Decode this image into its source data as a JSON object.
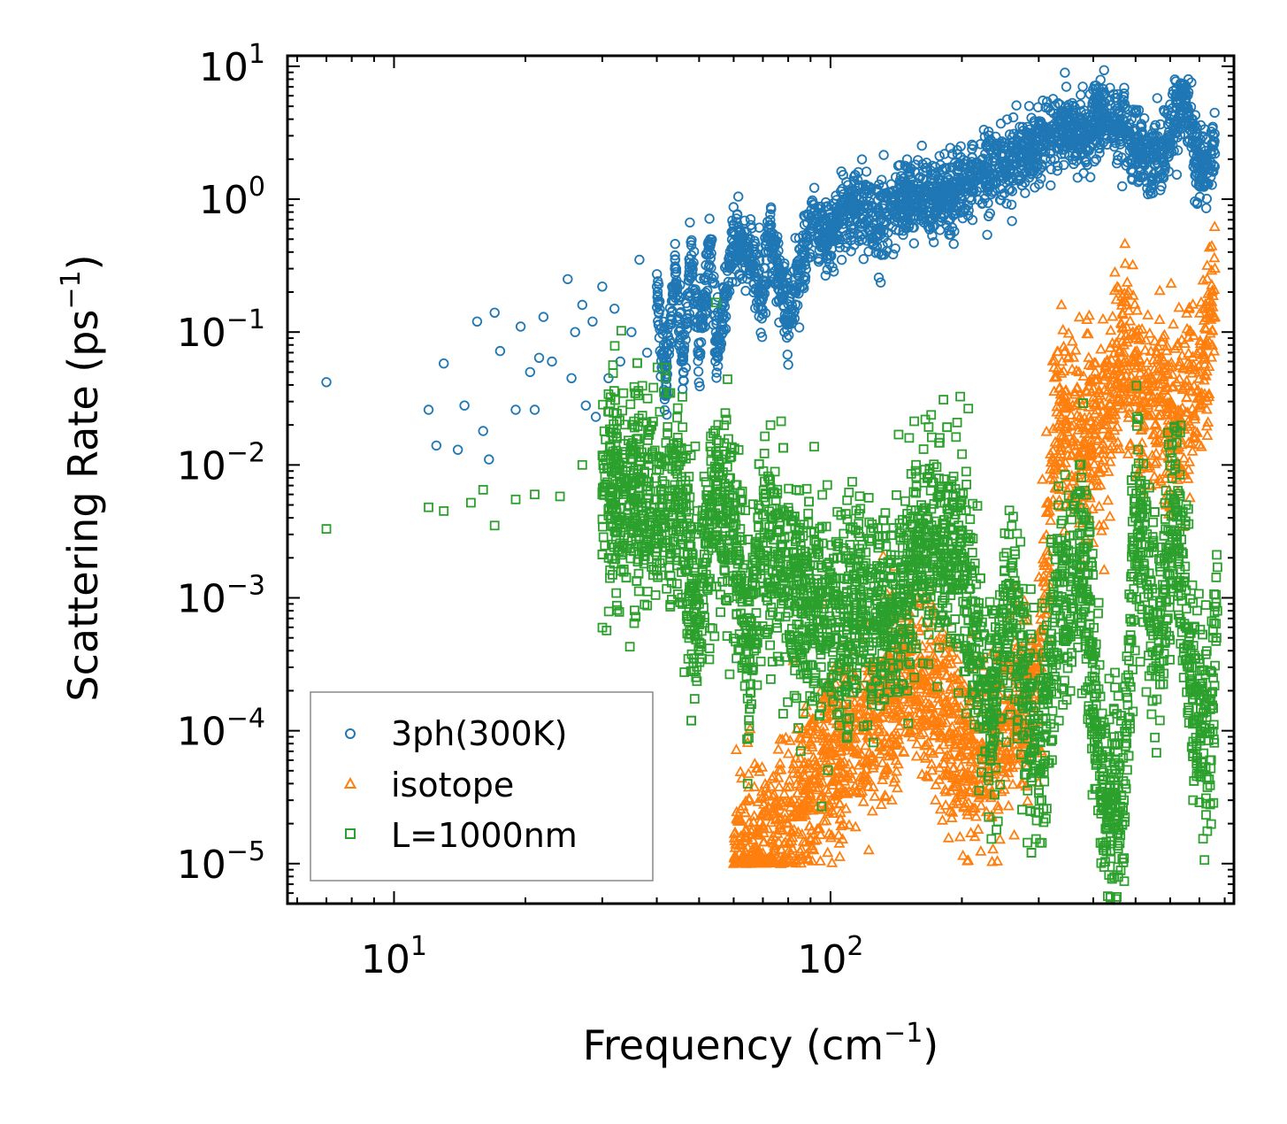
{
  "chart_data": {
    "type": "scatter",
    "xscale": "log",
    "yscale": "log",
    "xlim": [
      5.7,
      840
    ],
    "ylim": [
      5e-06,
      12
    ],
    "xlabel": {
      "base": "Frequency (cm",
      "sup": "−1",
      "tail": ")"
    },
    "ylabel": {
      "base": "Scattering Rate (ps",
      "sup": "−1",
      "tail": ")"
    },
    "x_ticks": [
      {
        "value": 10,
        "base": "10",
        "exp": "1"
      },
      {
        "value": 100,
        "base": "10",
        "exp": "2"
      }
    ],
    "y_ticks": [
      {
        "value": 10,
        "base": "10",
        "exp": "1"
      },
      {
        "value": 1,
        "base": "10",
        "exp": "0"
      },
      {
        "value": 0.1,
        "base": "10",
        "exp": "−1"
      },
      {
        "value": 0.01,
        "base": "10",
        "exp": "−2"
      },
      {
        "value": 0.001,
        "base": "10",
        "exp": "−3"
      },
      {
        "value": 0.0001,
        "base": "10",
        "exp": "−4"
      },
      {
        "value": 1e-05,
        "base": "10",
        "exp": "−5"
      }
    ],
    "legend_position": "lower-left",
    "series": [
      {
        "name": "3ph(300K)",
        "marker": "circle",
        "color": "#1f77b4",
        "sample_points": [
          [
            7.0,
            0.042
          ],
          [
            12.0,
            0.026
          ],
          [
            12.5,
            0.014
          ],
          [
            13.0,
            0.058
          ],
          [
            14.0,
            0.013
          ],
          [
            14.5,
            0.028
          ],
          [
            15.5,
            0.12
          ],
          [
            16.0,
            0.018
          ],
          [
            16.5,
            0.011
          ],
          [
            17.0,
            0.14
          ],
          [
            17.5,
            0.072
          ],
          [
            19.0,
            0.026
          ],
          [
            19.5,
            0.11
          ],
          [
            20.5,
            0.05
          ],
          [
            21.0,
            0.026
          ],
          [
            21.5,
            0.064
          ],
          [
            22.0,
            0.13
          ],
          [
            23.0,
            0.06
          ],
          [
            25.0,
            0.25
          ],
          [
            25.5,
            0.045
          ],
          [
            26.0,
            0.1
          ],
          [
            27.0,
            0.16
          ],
          [
            27.5,
            0.028
          ],
          [
            28.5,
            0.12
          ],
          [
            29.0,
            0.023
          ],
          [
            30.0,
            0.22
          ],
          [
            31.0,
            0.045
          ],
          [
            32.0,
            0.15
          ],
          [
            33.0,
            0.06
          ],
          [
            35.0,
            0.1
          ],
          [
            36.5,
            0.35
          ],
          [
            38.0,
            0.07
          ],
          [
            40.0,
            0.22
          ],
          [
            42.0,
            0.04
          ],
          [
            44.0,
            0.3
          ],
          [
            46.0,
            0.05
          ],
          [
            48.0,
            0.45
          ],
          [
            50.0,
            0.07
          ],
          [
            53.0,
            0.5
          ],
          [
            55.0,
            0.065
          ],
          [
            60.0,
            0.55
          ],
          [
            65.0,
            0.4
          ],
          [
            70.0,
            0.18
          ],
          [
            72.0,
            0.6
          ],
          [
            80.0,
            0.13
          ],
          [
            90.0,
            0.6
          ],
          [
            100.0,
            0.5
          ],
          [
            110.0,
            0.9
          ],
          [
            130.0,
            0.7
          ],
          [
            150.0,
            1.0
          ],
          [
            180.0,
            1.1
          ],
          [
            220.0,
            1.5
          ],
          [
            260.0,
            2.0
          ],
          [
            300.0,
            2.5
          ],
          [
            340.0,
            3.5
          ],
          [
            380.0,
            3.0
          ],
          [
            420.0,
            4.5
          ],
          [
            480.0,
            3.0
          ],
          [
            540.0,
            2.0
          ],
          [
            600.0,
            2.8
          ],
          [
            650.0,
            6.2
          ],
          [
            700.0,
            1.5
          ],
          [
            760.0,
            2.2
          ]
        ]
      },
      {
        "name": "isotope",
        "marker": "triangle",
        "color": "#ff7f0e",
        "sample_points": [
          [
            60.0,
            1e-05
          ],
          [
            70.0,
            1.2e-05
          ],
          [
            80.0,
            2e-05
          ],
          [
            90.0,
            4e-05
          ],
          [
            100.0,
            6e-05
          ],
          [
            120.0,
            0.0001
          ],
          [
            140.0,
            0.00018
          ],
          [
            160.0,
            0.00025
          ],
          [
            180.0,
            0.00012
          ],
          [
            200.0,
            8e-05
          ],
          [
            230.0,
            5e-05
          ],
          [
            260.0,
            0.00012
          ],
          [
            300.0,
            0.0003
          ],
          [
            320.0,
            0.005
          ],
          [
            330.0,
            0.025
          ],
          [
            380.0,
            0.015
          ],
          [
            430.0,
            0.02
          ],
          [
            470.0,
            0.08
          ],
          [
            520.0,
            0.03
          ],
          [
            580.0,
            0.03
          ],
          [
            640.0,
            0.02
          ],
          [
            700.0,
            0.05
          ],
          [
            760.0,
            0.13
          ]
        ]
      },
      {
        "name": "L=1000nm",
        "marker": "square",
        "color": "#2ca02c",
        "sample_points": [
          [
            7.0,
            0.0033
          ],
          [
            12.0,
            0.0048
          ],
          [
            13.0,
            0.0045
          ],
          [
            15.0,
            0.0052
          ],
          [
            16.0,
            0.0065
          ],
          [
            17.0,
            0.0035
          ],
          [
            19.0,
            0.0055
          ],
          [
            21.0,
            0.006
          ],
          [
            24.0,
            0.0058
          ],
          [
            27.0,
            0.01
          ],
          [
            30.0,
            0.006
          ],
          [
            35.0,
            0.007
          ],
          [
            40.0,
            0.0055
          ],
          [
            45.0,
            0.0065
          ],
          [
            48.0,
            0.0012
          ],
          [
            50.0,
            0.0009
          ],
          [
            55.0,
            0.007
          ],
          [
            60.0,
            0.003
          ],
          [
            65.0,
            0.00045
          ],
          [
            70.0,
            0.0026
          ],
          [
            80.0,
            0.0015
          ],
          [
            90.0,
            0.0008
          ],
          [
            100.0,
            0.0005
          ],
          [
            120.0,
            0.0008
          ],
          [
            140.0,
            0.0007
          ],
          [
            160.0,
            0.003
          ],
          [
            200.0,
            0.002
          ],
          [
            230.0,
            0.00011
          ],
          [
            260.0,
            0.001
          ],
          [
            300.0,
            5e-05
          ],
          [
            330.0,
            0.0008
          ],
          [
            380.0,
            0.002
          ],
          [
            420.0,
            3e-05
          ],
          [
            470.0,
            3e-05
          ],
          [
            500.0,
            0.004
          ],
          [
            560.0,
            0.0006
          ],
          [
            620.0,
            0.0045
          ],
          [
            680.0,
            0.00012
          ],
          [
            740.0,
            6e-05
          ],
          [
            770.0,
            0.0017
          ]
        ]
      }
    ]
  },
  "legend": {
    "items": [
      {
        "label": "3ph(300K)"
      },
      {
        "label": "isotope"
      },
      {
        "label": "L=1000nm"
      }
    ]
  }
}
